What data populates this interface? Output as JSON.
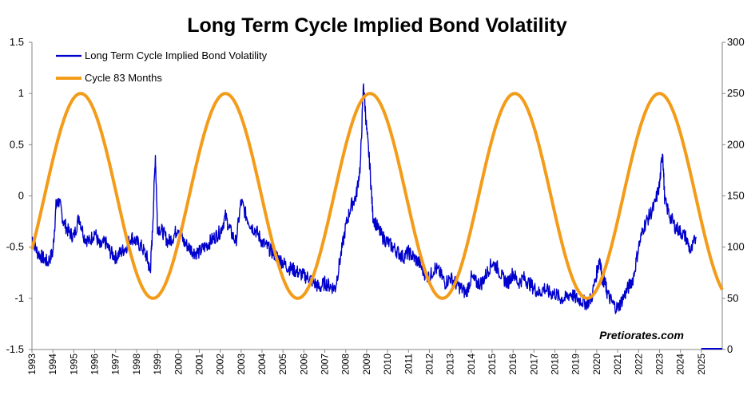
{
  "chart_data": {
    "type": "line",
    "title": "Long Term Cycle Implied Bond Volatility",
    "xlabel": "",
    "ylabel": "",
    "xlim": [
      1993.0,
      2026.0
    ],
    "ylim_left": [
      -1.5,
      1.5
    ],
    "ylim_right": [
      0,
      300
    ],
    "yticks_left": [
      "1.5",
      "1",
      "0.5",
      "0",
      "-0.5",
      "-1",
      "-1.5"
    ],
    "yticks_right": [
      "300",
      "250",
      "200",
      "150",
      "100",
      "50",
      "0"
    ],
    "xticks": [
      "1993",
      "1994",
      "1995",
      "1996",
      "1997",
      "1998",
      "1999",
      "2000",
      "2001",
      "2002",
      "2003",
      "2004",
      "2005",
      "2006",
      "2007",
      "2008",
      "2009",
      "2010",
      "2011",
      "2012",
      "2013",
      "2014",
      "2015",
      "2016",
      "2017",
      "2018",
      "2019",
      "2020",
      "2021",
      "2022",
      "2023",
      "2024",
      "2025"
    ],
    "grid": false,
    "legend_position": "top-left",
    "watermark": "Pretiorates.com",
    "series": [
      {
        "name": "Long Term Cycle Implied Bond Volatility",
        "axis": "left",
        "color": "#0000CC",
        "x": [
          1993.0,
          1993.25,
          1993.5,
          1993.75,
          1994.0,
          1994.15,
          1994.3,
          1994.5,
          1994.75,
          1995.0,
          1995.25,
          1995.5,
          1995.75,
          1996.0,
          1996.25,
          1996.5,
          1996.75,
          1997.0,
          1997.25,
          1997.5,
          1997.75,
          1998.0,
          1998.25,
          1998.5,
          1998.65,
          1998.75,
          1998.9,
          1999.0,
          1999.25,
          1999.5,
          1999.75,
          2000.0,
          2000.25,
          2000.5,
          2000.75,
          2001.0,
          2001.25,
          2001.5,
          2001.75,
          2002.0,
          2002.25,
          2002.5,
          2002.75,
          2003.0,
          2003.25,
          2003.5,
          2003.75,
          2004.0,
          2004.25,
          2004.5,
          2004.75,
          2005.0,
          2005.25,
          2005.5,
          2005.75,
          2006.0,
          2006.25,
          2006.5,
          2006.75,
          2007.0,
          2007.25,
          2007.5,
          2007.75,
          2008.0,
          2008.25,
          2008.5,
          2008.7,
          2008.85,
          2009.0,
          2009.15,
          2009.3,
          2009.5,
          2009.75,
          2010.0,
          2010.25,
          2010.5,
          2010.75,
          2011.0,
          2011.25,
          2011.5,
          2011.75,
          2012.0,
          2012.25,
          2012.5,
          2012.75,
          2013.0,
          2013.25,
          2013.5,
          2013.75,
          2014.0,
          2014.25,
          2014.5,
          2014.75,
          2015.0,
          2015.25,
          2015.5,
          2015.75,
          2016.0,
          2016.25,
          2016.5,
          2016.75,
          2017.0,
          2017.25,
          2017.5,
          2017.75,
          2018.0,
          2018.25,
          2018.5,
          2018.75,
          2019.0,
          2019.25,
          2019.5,
          2019.75,
          2020.0,
          2020.15,
          2020.25,
          2020.4,
          2020.5,
          2020.75,
          2021.0,
          2021.25,
          2021.5,
          2021.75,
          2022.0,
          2022.25,
          2022.5,
          2022.75,
          2023.0,
          2023.15,
          2023.25,
          2023.5,
          2023.75,
          2024.0,
          2024.25,
          2024.5,
          2024.75
        ],
        "values": [
          -0.4,
          -0.55,
          -0.6,
          -0.65,
          -0.55,
          -0.1,
          -0.05,
          -0.25,
          -0.35,
          -0.4,
          -0.2,
          -0.4,
          -0.45,
          -0.35,
          -0.5,
          -0.45,
          -0.55,
          -0.6,
          -0.55,
          -0.5,
          -0.4,
          -0.45,
          -0.5,
          -0.6,
          -0.75,
          -0.4,
          0.4,
          -0.3,
          -0.35,
          -0.45,
          -0.4,
          -0.3,
          -0.45,
          -0.5,
          -0.55,
          -0.55,
          -0.5,
          -0.45,
          -0.4,
          -0.35,
          -0.2,
          -0.35,
          -0.45,
          -0.05,
          -0.2,
          -0.3,
          -0.35,
          -0.45,
          -0.5,
          -0.55,
          -0.6,
          -0.65,
          -0.7,
          -0.72,
          -0.75,
          -0.78,
          -0.8,
          -0.85,
          -0.9,
          -0.85,
          -0.88,
          -0.9,
          -0.6,
          -0.3,
          -0.1,
          0.0,
          0.3,
          1.1,
          0.65,
          0.3,
          -0.2,
          -0.3,
          -0.4,
          -0.45,
          -0.5,
          -0.55,
          -0.6,
          -0.55,
          -0.6,
          -0.65,
          -0.75,
          -0.8,
          -0.7,
          -0.75,
          -0.85,
          -0.8,
          -0.85,
          -0.9,
          -0.95,
          -0.8,
          -0.85,
          -0.85,
          -0.75,
          -0.65,
          -0.7,
          -0.8,
          -0.85,
          -0.75,
          -0.85,
          -0.8,
          -0.85,
          -0.9,
          -0.95,
          -0.9,
          -0.95,
          -0.95,
          -1.0,
          -1.0,
          -0.95,
          -1.0,
          -1.02,
          -1.05,
          -1.0,
          -0.75,
          -0.6,
          -0.8,
          -0.85,
          -0.95,
          -1.05,
          -1.1,
          -1.0,
          -0.9,
          -0.8,
          -0.5,
          -0.3,
          -0.2,
          -0.1,
          0.1,
          0.45,
          -0.05,
          -0.2,
          -0.3,
          -0.35,
          -0.4,
          -0.55,
          -0.4
        ]
      },
      {
        "name": "Cycle 83 Months",
        "axis": "right",
        "color": "#F39C1A",
        "period_months": 83,
        "amplitude": 100,
        "center": 150,
        "first_peak": 1995.33
      }
    ]
  }
}
